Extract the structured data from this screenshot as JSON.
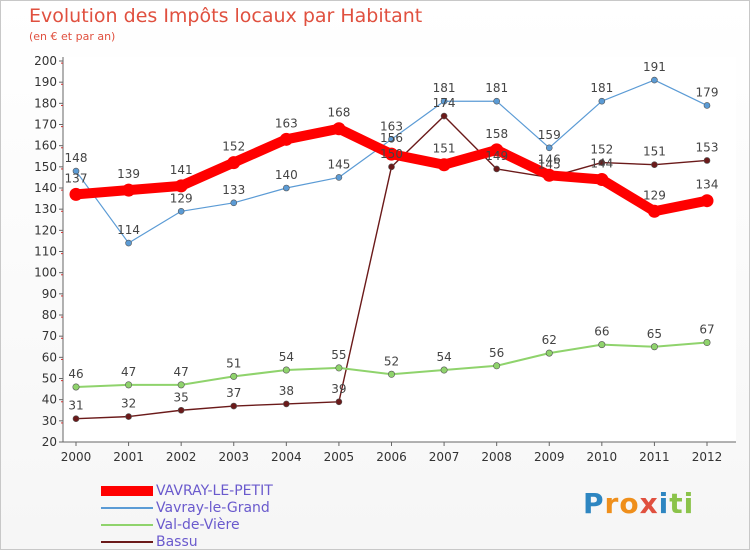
{
  "title": "Evolution des Impôts locaux par Habitant",
  "subtitle": "(en € et par an)",
  "brand": {
    "text": "Proxiti",
    "letters": [
      "P",
      "r",
      "o",
      "x",
      "i",
      "t",
      "i"
    ],
    "colors": [
      "#2e86c1",
      "#ef8f1b",
      "#ef8f1b",
      "#e0503f",
      "#2e86c1",
      "#8bc34a",
      "#8bc34a"
    ]
  },
  "chart_data": {
    "type": "line",
    "x": [
      "2000",
      "2001",
      "2002",
      "2003",
      "2004",
      "2005",
      "2006",
      "2007",
      "2008",
      "2009",
      "2010",
      "2011",
      "2012"
    ],
    "ylim": [
      20,
      200
    ],
    "ytick_step": 10,
    "grid": false,
    "legend_position": "bottom-left",
    "series": [
      {
        "name": "VAVRAY-LE-PETIT",
        "color": "#ff0000",
        "values": [
          137,
          139,
          141,
          152,
          163,
          168,
          156,
          151,
          158,
          146,
          144,
          129,
          134
        ]
      },
      {
        "name": "Vavray-le-Grand",
        "color": "#5b9bd5",
        "values": [
          148,
          114,
          129,
          133,
          140,
          145,
          163,
          181,
          181,
          159,
          181,
          191,
          179
        ]
      },
      {
        "name": "Val-de-Vière",
        "color": "#8fd36c",
        "values": [
          46,
          47,
          47,
          51,
          54,
          55,
          52,
          54,
          56,
          62,
          66,
          65,
          67
        ]
      },
      {
        "name": "Bassu",
        "color": "#6b1a1a",
        "values": [
          31,
          32,
          35,
          37,
          38,
          39,
          150,
          174,
          149,
          145,
          152,
          151,
          153
        ]
      }
    ]
  }
}
